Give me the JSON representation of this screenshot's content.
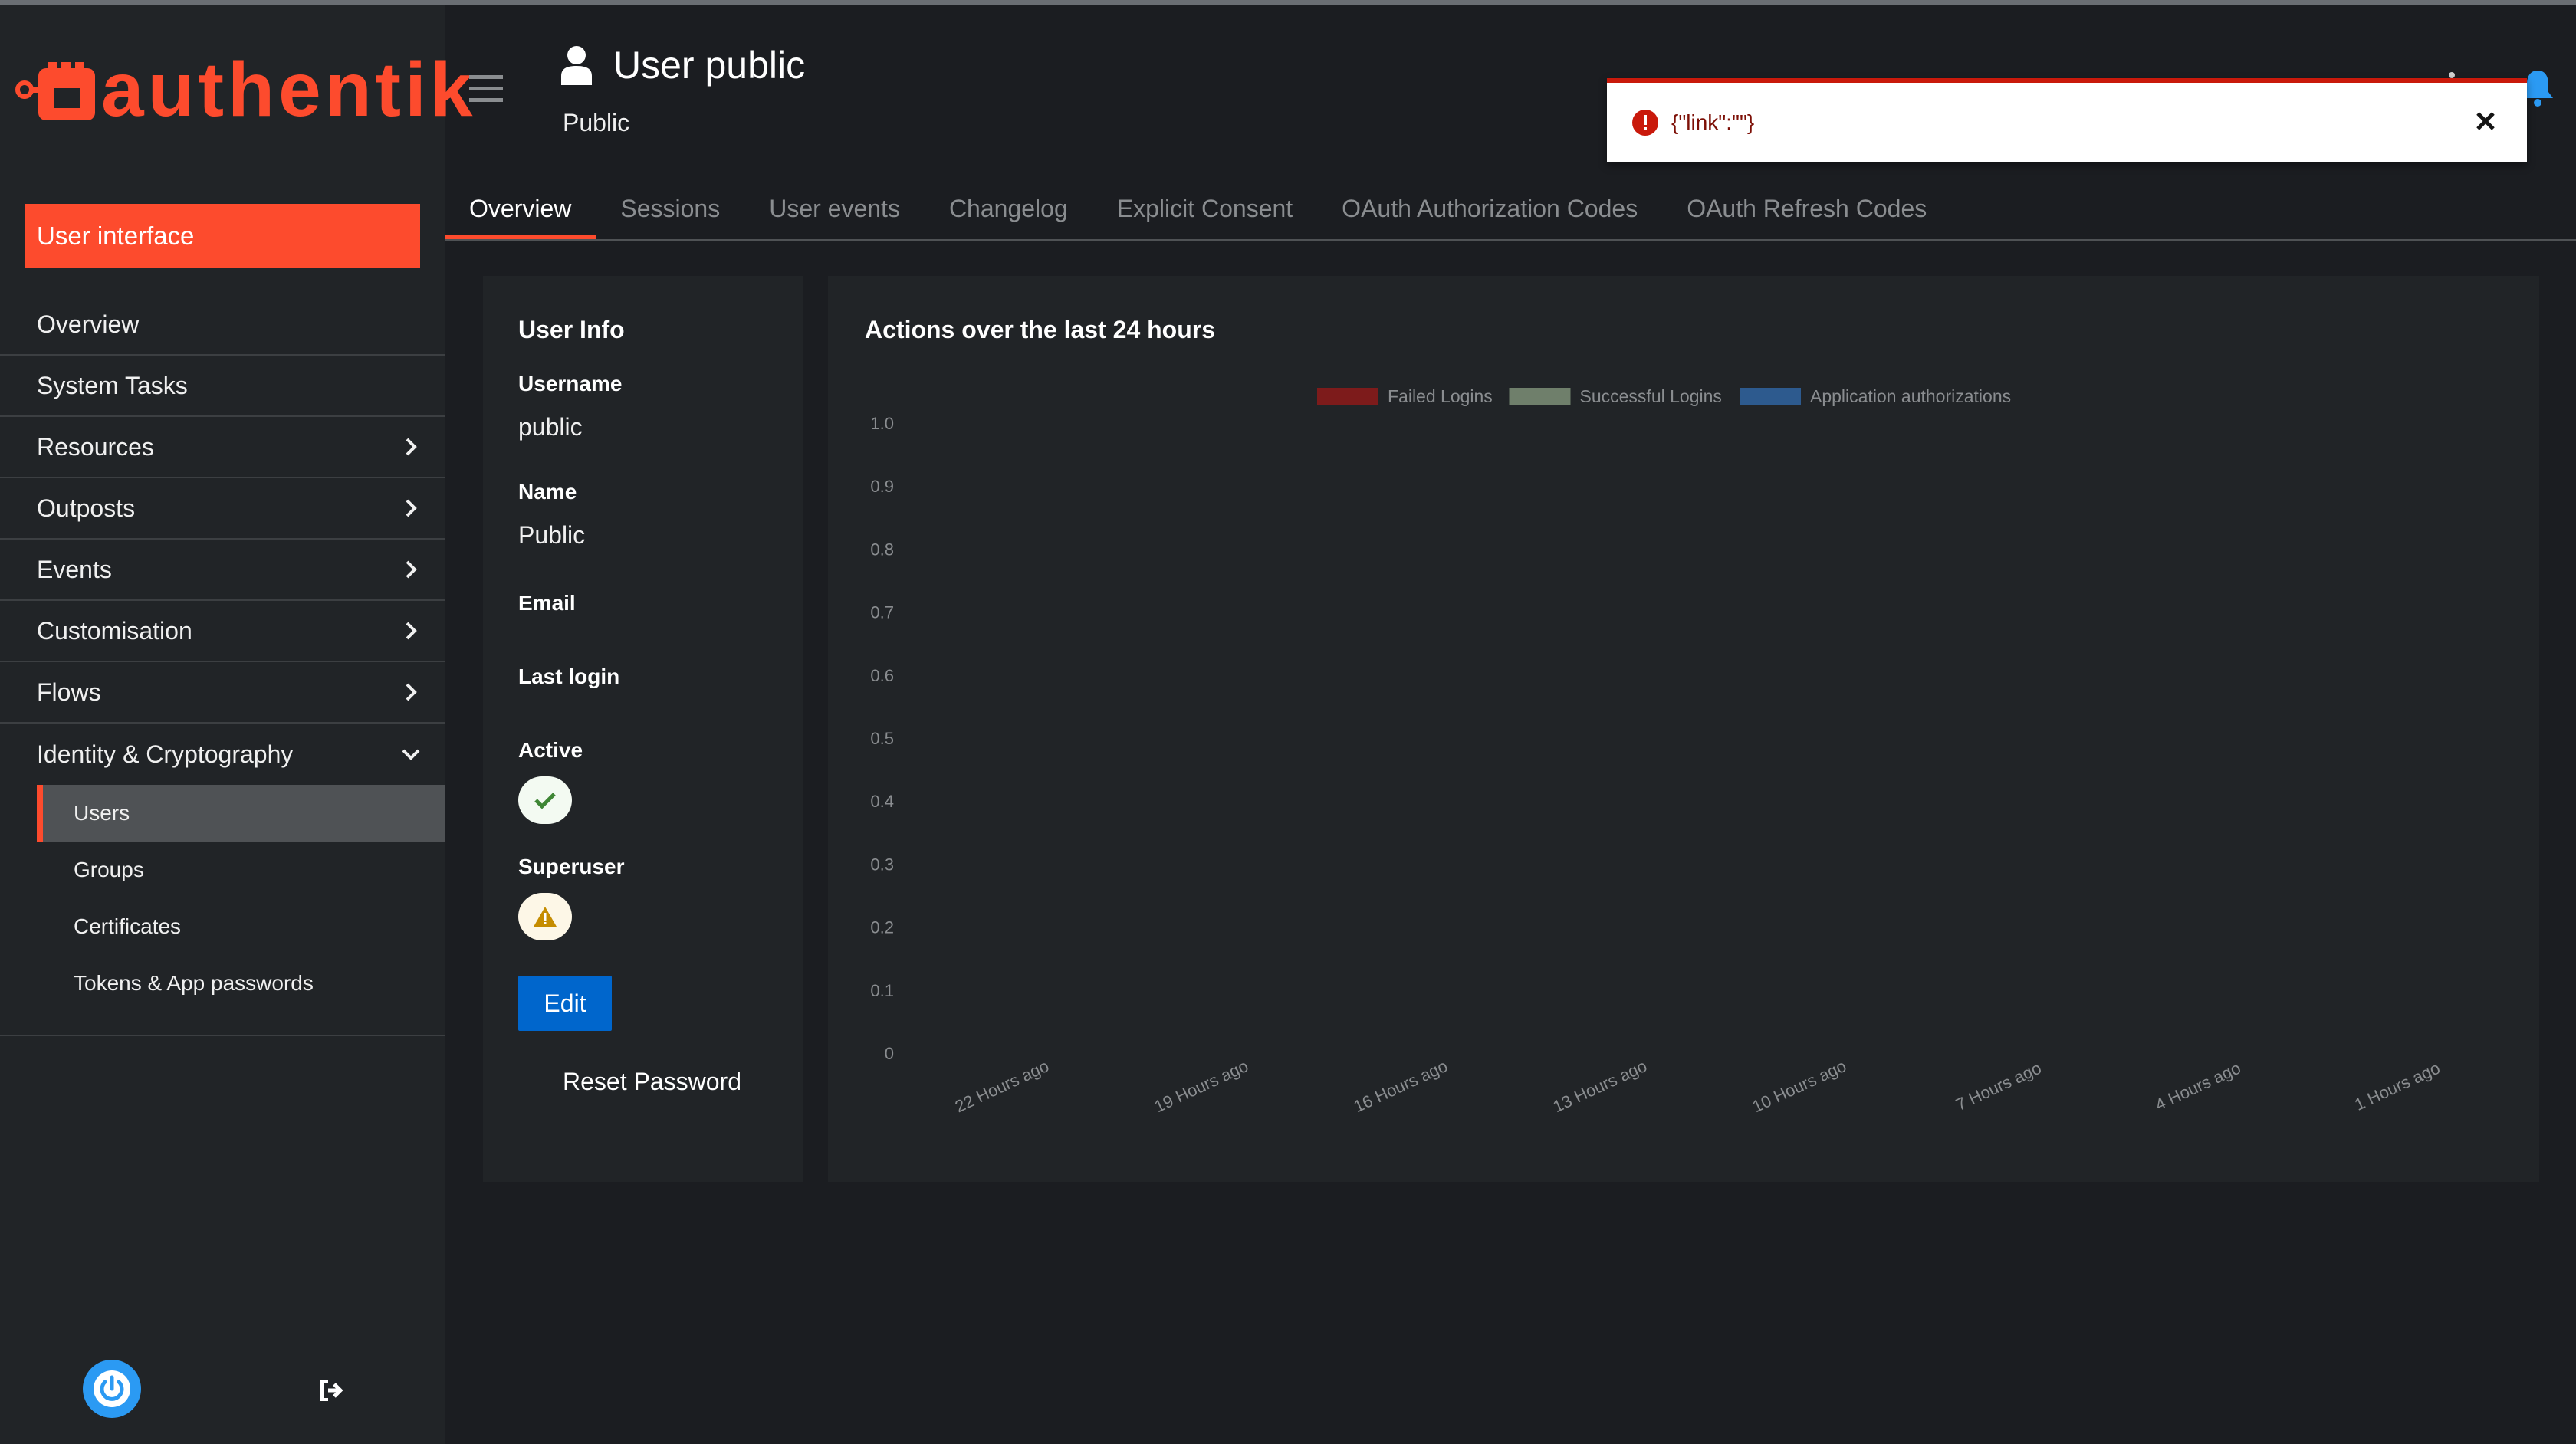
{
  "app": {
    "brand": "authentik",
    "brand_color": "#fd4b2d"
  },
  "sidebar": {
    "user_interface_label": "User interface",
    "items": [
      {
        "label": "Overview",
        "expandable": false
      },
      {
        "label": "System Tasks",
        "expandable": false
      },
      {
        "label": "Resources",
        "expandable": true
      },
      {
        "label": "Outposts",
        "expandable": true
      },
      {
        "label": "Events",
        "expandable": true
      },
      {
        "label": "Customisation",
        "expandable": true
      },
      {
        "label": "Flows",
        "expandable": true
      },
      {
        "label": "Identity & Cryptography",
        "expandable": true,
        "expanded": true
      }
    ],
    "sub_items": [
      {
        "label": "Users",
        "active": true
      },
      {
        "label": "Groups",
        "active": false
      },
      {
        "label": "Certificates",
        "active": false
      },
      {
        "label": "Tokens & App passwords",
        "active": false
      }
    ]
  },
  "header": {
    "title": "User public",
    "subtitle": "Public",
    "icon": "user-icon"
  },
  "toast": {
    "text": "{\"link\":\"\"}",
    "type": "error",
    "color": "#c9190b"
  },
  "tabs": [
    {
      "label": "Overview",
      "active": true
    },
    {
      "label": "Sessions",
      "active": false
    },
    {
      "label": "User events",
      "active": false
    },
    {
      "label": "Changelog",
      "active": false
    },
    {
      "label": "Explicit Consent",
      "active": false
    },
    {
      "label": "OAuth Authorization Codes",
      "active": false
    },
    {
      "label": "OAuth Refresh Codes",
      "active": false
    }
  ],
  "user_info": {
    "title": "User Info",
    "username_label": "Username",
    "username": "public",
    "name_label": "Name",
    "name": "Public",
    "email_label": "Email",
    "email": "",
    "last_login_label": "Last login",
    "last_login": "",
    "active_label": "Active",
    "active": true,
    "superuser_label": "Superuser",
    "superuser": false,
    "edit_label": "Edit",
    "reset_password_label": "Reset Password"
  },
  "chart_data": {
    "type": "bar",
    "title": "Actions over the last 24 hours",
    "categories": [
      "22 Hours ago",
      "19 Hours ago",
      "16 Hours ago",
      "13 Hours ago",
      "10 Hours ago",
      "7 Hours ago",
      "4 Hours ago",
      "1 Hours ago"
    ],
    "series": [
      {
        "name": "Failed Logins",
        "color": "#7d1b1b",
        "values": [
          0,
          0,
          0,
          0,
          0,
          0,
          0,
          0
        ]
      },
      {
        "name": "Successful Logins",
        "color": "#6f7f6b",
        "values": [
          0,
          0,
          0,
          0,
          0,
          0,
          0,
          0
        ]
      },
      {
        "name": "Application authorizations",
        "color": "#2d5a8e",
        "values": [
          0,
          0,
          0,
          0,
          0,
          0,
          0,
          0
        ]
      }
    ],
    "y_ticks": [
      "1.0",
      "0.9",
      "0.8",
      "0.7",
      "0.6",
      "0.5",
      "0.4",
      "0.3",
      "0.2",
      "0.1",
      "0"
    ],
    "ylim": [
      0,
      1
    ],
    "legend_position": "top",
    "grid": false
  }
}
